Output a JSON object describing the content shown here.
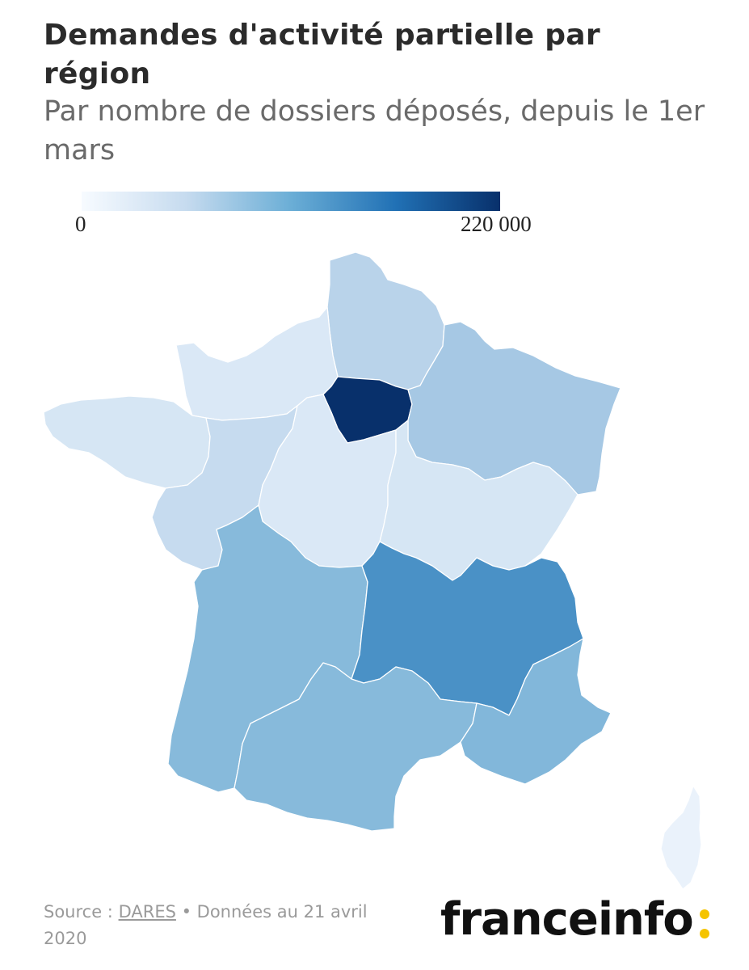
{
  "header": {
    "title": "Demandes d'activité partielle par région",
    "subtitle": "Par nombre de dossiers déposés, depuis le 1er mars"
  },
  "legend": {
    "min_label": "0",
    "max_label": "220 000",
    "color_min": "#f7fbff",
    "color_max": "#08306b"
  },
  "regions": [
    {
      "name": "Hauts-de-France",
      "fill": "#b9d3ea"
    },
    {
      "name": "Normandie",
      "fill": "#dae8f6"
    },
    {
      "name": "Île-de-France",
      "fill": "#08306b"
    },
    {
      "name": "Grand Est",
      "fill": "#a6c8e4"
    },
    {
      "name": "Bretagne",
      "fill": "#d6e6f4"
    },
    {
      "name": "Pays de la Loire",
      "fill": "#c6dbef"
    },
    {
      "name": "Centre-Val de Loire",
      "fill": "#dae8f6"
    },
    {
      "name": "Bourgogne-Franche-Comté",
      "fill": "#d6e6f4"
    },
    {
      "name": "Nouvelle-Aquitaine",
      "fill": "#87badb"
    },
    {
      "name": "Auvergne-Rhône-Alpes",
      "fill": "#4a91c6"
    },
    {
      "name": "Occitanie",
      "fill": "#87badb"
    },
    {
      "name": "Provence-Alpes-Côte d'Azur",
      "fill": "#82b7da"
    },
    {
      "name": "Corse",
      "fill": "#eaf2fb"
    }
  ],
  "footer": {
    "source_prefix": "Source : ",
    "source_link": "DARES",
    "source_suffix": " • Données au 21 avril 2020"
  },
  "logo": {
    "text": "franceinfo",
    "accent_color": "#f5c400"
  }
}
